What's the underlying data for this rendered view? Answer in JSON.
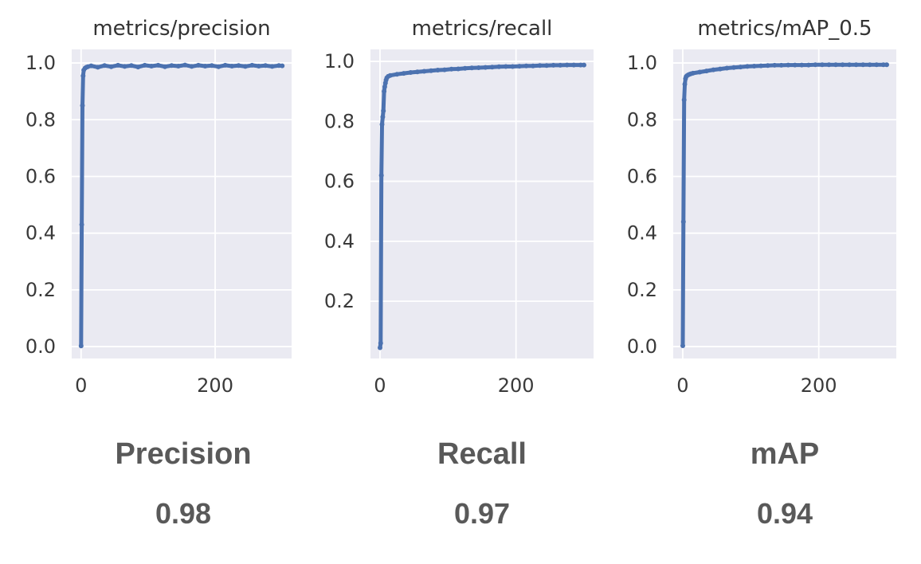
{
  "style": {
    "page_bg": "#ffffff",
    "plot_bg": "#eaeaf2",
    "grid_color": "#ffffff",
    "line_color": "#4c72b0",
    "tick_color": "#3a3a3a",
    "title_color": "#333333",
    "summary_color": "#595959"
  },
  "summary": {
    "items": [
      {
        "label": "Precision",
        "value": "0.98"
      },
      {
        "label": "Recall",
        "value": "0.97"
      },
      {
        "label": "mAP",
        "value": "0.94"
      }
    ]
  },
  "chart_data": [
    {
      "type": "line",
      "title": "metrics/precision",
      "xlabel": "",
      "ylabel": "",
      "grid": true,
      "legend": "none",
      "xlim": [
        -14,
        314
      ],
      "ylim": [
        -0.042,
        1.048
      ],
      "xticks": [
        {
          "v": 0,
          "label": "0"
        },
        {
          "v": 200,
          "label": "200"
        }
      ],
      "yticks": [
        {
          "v": 0.0,
          "label": "0.0"
        },
        {
          "v": 0.2,
          "label": "0.2"
        },
        {
          "v": 0.4,
          "label": "0.4"
        },
        {
          "v": 0.6,
          "label": "0.6"
        },
        {
          "v": 0.8,
          "label": "0.8"
        },
        {
          "v": 1.0,
          "label": "1.0"
        }
      ],
      "points": [
        [
          0,
          0.002
        ],
        [
          1,
          0.43
        ],
        [
          2,
          0.85
        ],
        [
          3,
          0.955
        ],
        [
          4,
          0.975
        ],
        [
          6,
          0.982
        ],
        [
          8,
          0.985
        ],
        [
          10,
          0.987
        ],
        [
          15,
          0.99
        ],
        [
          25,
          0.985
        ],
        [
          35,
          0.991
        ],
        [
          45,
          0.987
        ],
        [
          55,
          0.992
        ],
        [
          65,
          0.988
        ],
        [
          75,
          0.991
        ],
        [
          85,
          0.986
        ],
        [
          95,
          0.992
        ],
        [
          105,
          0.989
        ],
        [
          115,
          0.992
        ],
        [
          125,
          0.987
        ],
        [
          135,
          0.991
        ],
        [
          145,
          0.989
        ],
        [
          155,
          0.993
        ],
        [
          165,
          0.988
        ],
        [
          175,
          0.992
        ],
        [
          185,
          0.989
        ],
        [
          195,
          0.991
        ],
        [
          205,
          0.987
        ],
        [
          215,
          0.992
        ],
        [
          225,
          0.989
        ],
        [
          235,
          0.991
        ],
        [
          245,
          0.988
        ],
        [
          255,
          0.992
        ],
        [
          265,
          0.989
        ],
        [
          275,
          0.991
        ],
        [
          285,
          0.988
        ],
        [
          295,
          0.991
        ],
        [
          300,
          0.99
        ]
      ]
    },
    {
      "type": "line",
      "title": "metrics/recall",
      "xlabel": "",
      "ylabel": "",
      "grid": true,
      "legend": "none",
      "xlim": [
        -14,
        314
      ],
      "ylim": [
        0.009,
        1.04
      ],
      "xticks": [
        {
          "v": 0,
          "label": "0"
        },
        {
          "v": 200,
          "label": "200"
        }
      ],
      "yticks": [
        {
          "v": 0.2,
          "label": "0.2"
        },
        {
          "v": 0.4,
          "label": "0.4"
        },
        {
          "v": 0.6,
          "label": "0.6"
        },
        {
          "v": 0.8,
          "label": "0.8"
        },
        {
          "v": 1.0,
          "label": "1.0"
        }
      ],
      "points": [
        [
          0,
          0.045
        ],
        [
          1,
          0.06
        ],
        [
          2,
          0.62
        ],
        [
          3,
          0.79
        ],
        [
          4,
          0.815
        ],
        [
          5,
          0.835
        ],
        [
          6,
          0.9
        ],
        [
          7,
          0.915
        ],
        [
          8,
          0.928
        ],
        [
          9,
          0.938
        ],
        [
          10,
          0.945
        ],
        [
          12,
          0.95
        ],
        [
          15,
          0.953
        ],
        [
          25,
          0.957
        ],
        [
          35,
          0.96
        ],
        [
          45,
          0.963
        ],
        [
          55,
          0.965
        ],
        [
          65,
          0.967
        ],
        [
          75,
          0.969
        ],
        [
          85,
          0.971
        ],
        [
          95,
          0.972
        ],
        [
          105,
          0.974
        ],
        [
          115,
          0.975
        ],
        [
          125,
          0.977
        ],
        [
          135,
          0.978
        ],
        [
          145,
          0.979
        ],
        [
          155,
          0.98
        ],
        [
          165,
          0.981
        ],
        [
          175,
          0.982
        ],
        [
          185,
          0.983
        ],
        [
          195,
          0.983
        ],
        [
          205,
          0.984
        ],
        [
          215,
          0.985
        ],
        [
          225,
          0.985
        ],
        [
          235,
          0.986
        ],
        [
          245,
          0.986
        ],
        [
          255,
          0.987
        ],
        [
          265,
          0.987
        ],
        [
          275,
          0.988
        ],
        [
          285,
          0.988
        ],
        [
          295,
          0.988
        ],
        [
          300,
          0.988
        ]
      ]
    },
    {
      "type": "line",
      "title": "metrics/mAP_0.5",
      "xlabel": "",
      "ylabel": "",
      "grid": true,
      "legend": "none",
      "xlim": [
        -14,
        314
      ],
      "ylim": [
        -0.042,
        1.048
      ],
      "xticks": [
        {
          "v": 0,
          "label": "0"
        },
        {
          "v": 200,
          "label": "200"
        }
      ],
      "yticks": [
        {
          "v": 0.0,
          "label": "0.0"
        },
        {
          "v": 0.2,
          "label": "0.2"
        },
        {
          "v": 0.4,
          "label": "0.4"
        },
        {
          "v": 0.6,
          "label": "0.6"
        },
        {
          "v": 0.8,
          "label": "0.8"
        },
        {
          "v": 1.0,
          "label": "1.0"
        }
      ],
      "points": [
        [
          0,
          0.003
        ],
        [
          1,
          0.44
        ],
        [
          2,
          0.87
        ],
        [
          3,
          0.925
        ],
        [
          4,
          0.945
        ],
        [
          5,
          0.952
        ],
        [
          6,
          0.955
        ],
        [
          8,
          0.958
        ],
        [
          10,
          0.96
        ],
        [
          12,
          0.962
        ],
        [
          15,
          0.964
        ],
        [
          25,
          0.968
        ],
        [
          35,
          0.972
        ],
        [
          45,
          0.976
        ],
        [
          55,
          0.979
        ],
        [
          65,
          0.982
        ],
        [
          75,
          0.984
        ],
        [
          85,
          0.986
        ],
        [
          95,
          0.988
        ],
        [
          105,
          0.989
        ],
        [
          115,
          0.99
        ],
        [
          125,
          0.991
        ],
        [
          135,
          0.992
        ],
        [
          145,
          0.992
        ],
        [
          155,
          0.993
        ],
        [
          165,
          0.993
        ],
        [
          175,
          0.993
        ],
        [
          185,
          0.993
        ],
        [
          195,
          0.994
        ],
        [
          205,
          0.994
        ],
        [
          215,
          0.994
        ],
        [
          225,
          0.994
        ],
        [
          235,
          0.994
        ],
        [
          245,
          0.994
        ],
        [
          255,
          0.994
        ],
        [
          265,
          0.994
        ],
        [
          275,
          0.994
        ],
        [
          285,
          0.994
        ],
        [
          295,
          0.994
        ],
        [
          300,
          0.994
        ]
      ]
    }
  ]
}
